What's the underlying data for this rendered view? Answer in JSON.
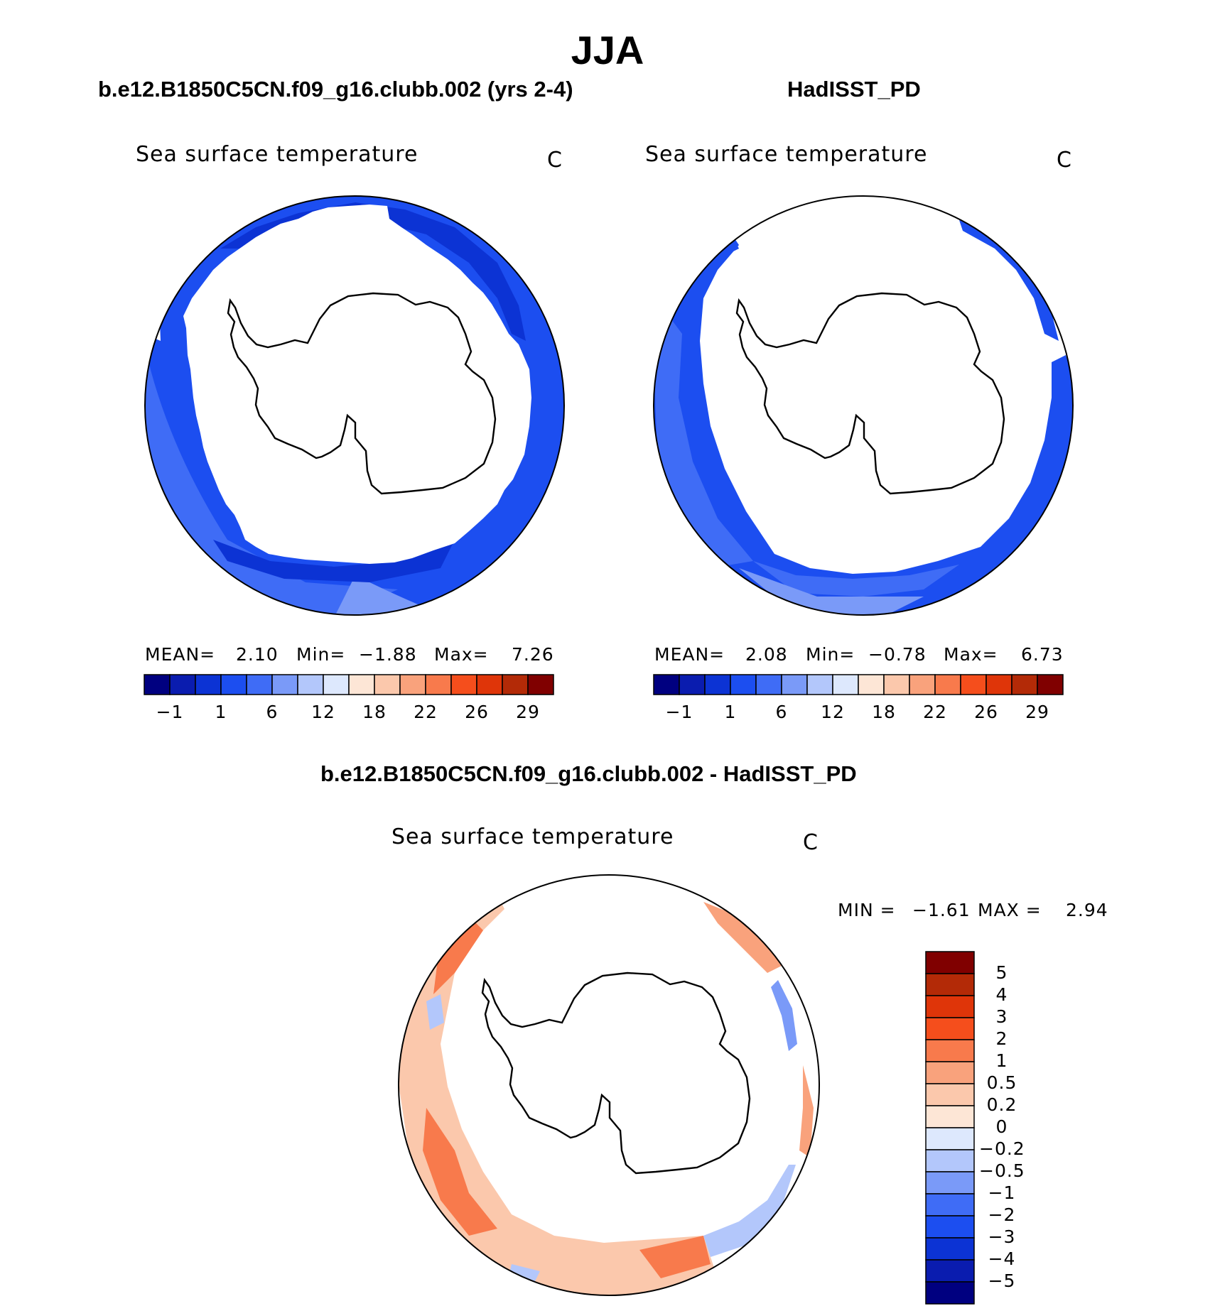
{
  "figure": {
    "season": "JJA"
  },
  "panels": {
    "model": {
      "case": "b.e12.B1850C5CN.f09_g16.clubb.002 (yrs 2-4)",
      "variable": "Sea surface temperature",
      "units": "C",
      "mean_label": "MEAN=",
      "mean": "2.10",
      "min_label": "Min=",
      "min": "−1.88",
      "max_label": "Max=",
      "max": "7.26"
    },
    "obs": {
      "case": "HadISST_PD",
      "variable": "Sea surface temperature",
      "units": "C",
      "mean_label": "MEAN=",
      "mean": "2.08",
      "min_label": "Min=",
      "min": "−0.78",
      "max_label": "Max=",
      "max": "6.73"
    },
    "diff": {
      "case": "b.e12.B1850C5CN.f09_g16.clubb.002 - HadISST_PD",
      "variable": "Sea surface temperature",
      "units": "C",
      "min_label": "MIN =",
      "min": "−1.61",
      "max_label": "MAX =",
      "max": "2.94"
    }
  },
  "colorbars": {
    "abs_colors": [
      "#000080",
      "#0a1caf",
      "#0c33d4",
      "#1c4ef0",
      "#3f6cf6",
      "#7a9af8",
      "#b3c7fb",
      "#dde8fd",
      "#fde6d6",
      "#fbc8ac",
      "#f9a27c",
      "#f87a4c",
      "#f54e1c",
      "#df3509",
      "#b32a07",
      "#800000"
    ],
    "abs_ticks": [
      "−1",
      "1",
      "6",
      "12",
      "18",
      "22",
      "26",
      "29"
    ],
    "diff_colors": [
      "#800000",
      "#b32a07",
      "#df3509",
      "#f54e1c",
      "#f87a4c",
      "#f9a27c",
      "#fbc8ac",
      "#fde6d6",
      "#dde8fd",
      "#b3c7fb",
      "#7a9af8",
      "#3f6cf6",
      "#1c4ef0",
      "#0c33d4",
      "#0a1caf",
      "#000080"
    ],
    "diff_ticks": [
      "5",
      "4",
      "3",
      "2",
      "1",
      "0.5",
      "0.2",
      "0",
      "−0.2",
      "−0.5",
      "−1",
      "−2",
      "−3",
      "−4",
      "−5"
    ]
  },
  "map_colors": {
    "ice": "#ffffff",
    "land_outline": "#000000",
    "sst_cold": "#1c4ef0",
    "sst_mid": "#3f6cf6",
    "sst_deep": "#0c33d4",
    "sst_warm": "#7a9af8",
    "diff_pos": "#f9a27c",
    "diff_pos_strong": "#f87a4c",
    "diff_pos_light": "#fbc8ac",
    "diff_neg": "#b3c7fb",
    "diff_neg_strong": "#3f6cf6"
  }
}
